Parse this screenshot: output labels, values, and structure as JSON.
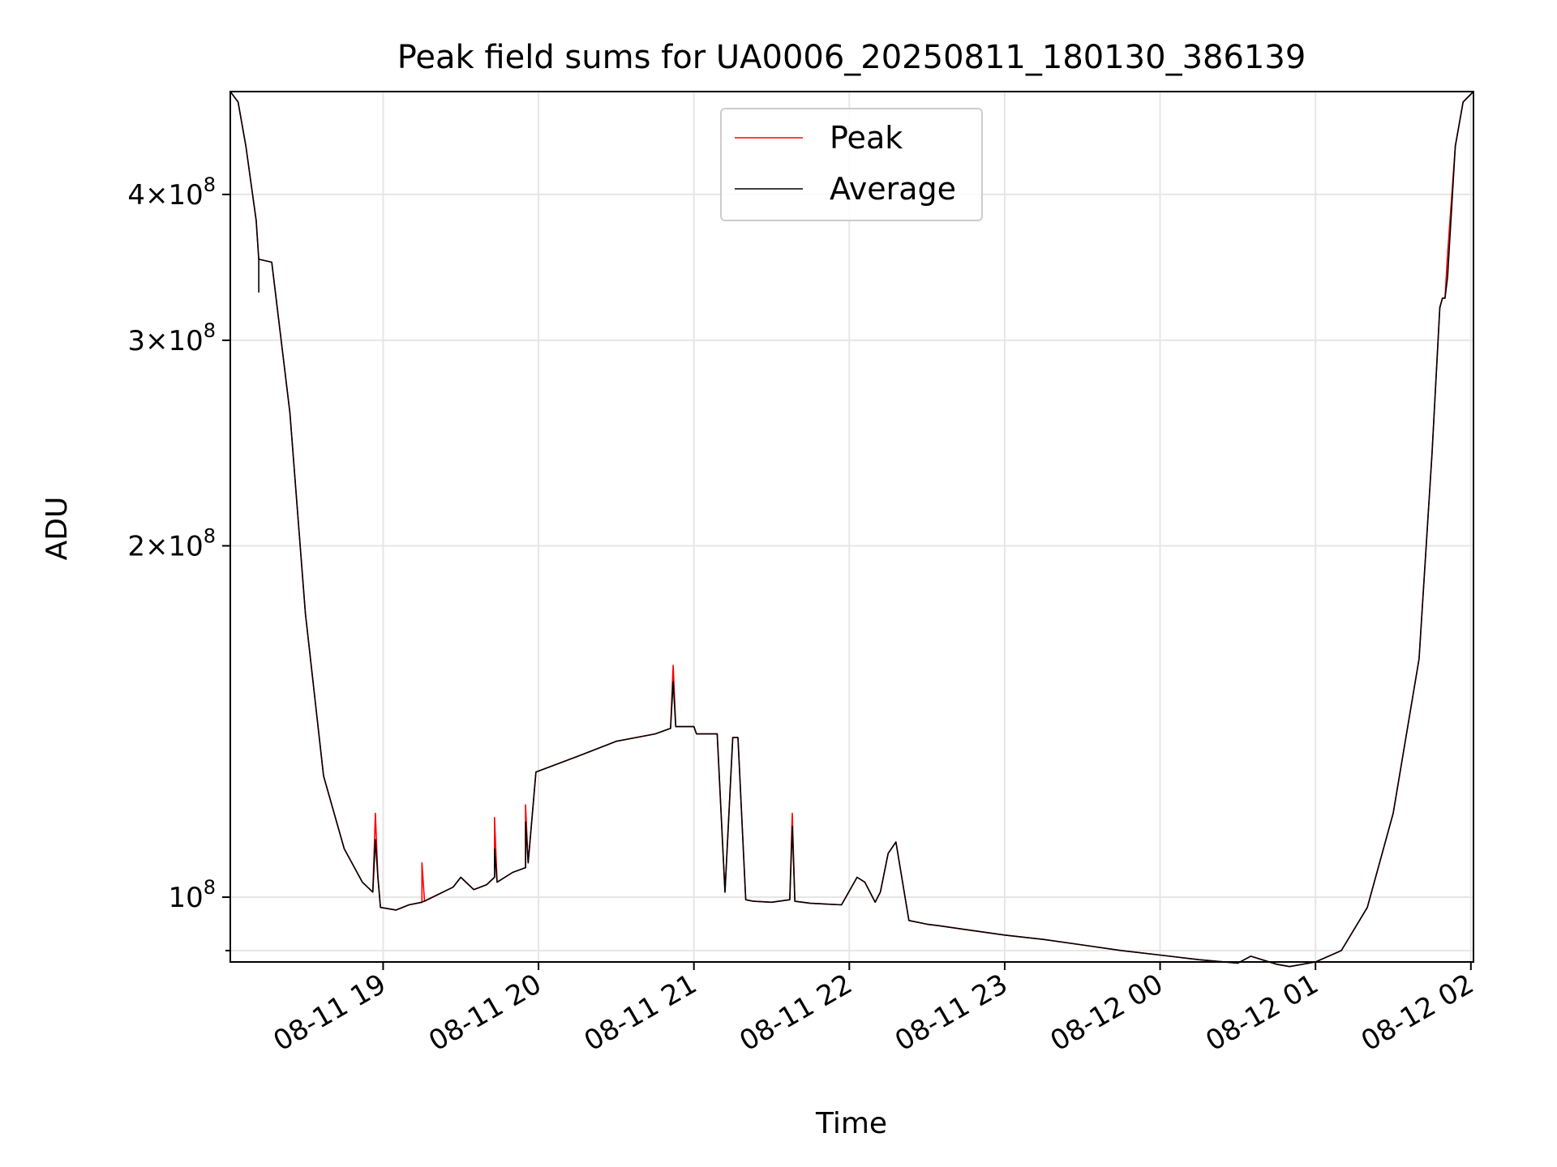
{
  "chart_data": {
    "type": "line",
    "title": "Peak field sums for UA0006_20250811_180130_386139",
    "xlabel": "Time",
    "ylabel": "ADU",
    "yscale": "log",
    "grid": true,
    "legend_position": "upper center",
    "xlim": [
      "2025-08-11 18:01",
      "2025-08-12 02:01"
    ],
    "ylim": [
      88000000,
      490000000
    ],
    "x_ticks": [
      {
        "value": "2025-08-11 19:00",
        "label": "08-11 19"
      },
      {
        "value": "2025-08-11 20:00",
        "label": "08-11 20"
      },
      {
        "value": "2025-08-11 21:00",
        "label": "08-11 21"
      },
      {
        "value": "2025-08-11 22:00",
        "label": "08-11 22"
      },
      {
        "value": "2025-08-11 23:00",
        "label": "08-11 23"
      },
      {
        "value": "2025-08-12 00:00",
        "label": "08-12 00"
      },
      {
        "value": "2025-08-12 01:00",
        "label": "08-12 01"
      },
      {
        "value": "2025-08-12 02:00",
        "label": "08-12 02"
      }
    ],
    "y_ticks_major": [
      {
        "value": 100000000,
        "mant": "",
        "exp": "8"
      },
      {
        "value": 200000000,
        "mant": "2",
        "exp": "8"
      },
      {
        "value": 300000000,
        "mant": "3",
        "exp": "8"
      },
      {
        "value": 400000000,
        "mant": "4",
        "exp": "8"
      }
    ],
    "y_ticks_minor": [
      90000000
    ],
    "series": [
      {
        "name": "Peak",
        "color": "#ff0000",
        "x": [
          "2025-08-11 18:01",
          "2025-08-11 18:04",
          "2025-08-11 18:07",
          "2025-08-11 18:11",
          "2025-08-11 18:12",
          "2025-08-11 18:17",
          "2025-08-11 18:24",
          "2025-08-11 18:30",
          "2025-08-11 18:37",
          "2025-08-11 18:45",
          "2025-08-11 18:52",
          "2025-08-11 18:56",
          "2025-08-11 18:57",
          "2025-08-11 18:58",
          "2025-08-11 18:59",
          "2025-08-11 19:05",
          "2025-08-11 19:10",
          "2025-08-11 19:15",
          "2025-08-11 19:15",
          "2025-08-11 19:16",
          "2025-08-11 19:27",
          "2025-08-11 19:30",
          "2025-08-11 19:35",
          "2025-08-11 19:40",
          "2025-08-11 19:43",
          "2025-08-11 19:43",
          "2025-08-11 19:44",
          "2025-08-11 19:50",
          "2025-08-11 19:55",
          "2025-08-11 19:55",
          "2025-08-11 19:56",
          "2025-08-11 19:59",
          "2025-08-11 20:15",
          "2025-08-11 20:30",
          "2025-08-11 20:45",
          "2025-08-11 20:51",
          "2025-08-11 20:52",
          "2025-08-11 20:53",
          "2025-08-11 21:00",
          "2025-08-11 21:01",
          "2025-08-11 21:09",
          "2025-08-11 21:12",
          "2025-08-11 21:15",
          "2025-08-11 21:17",
          "2025-08-11 21:20",
          "2025-08-11 21:23",
          "2025-08-11 21:30",
          "2025-08-11 21:37",
          "2025-08-11 21:38",
          "2025-08-11 21:39",
          "2025-08-11 21:45",
          "2025-08-11 21:57",
          "2025-08-11 22:03",
          "2025-08-11 22:06",
          "2025-08-11 22:10",
          "2025-08-11 22:12",
          "2025-08-11 22:15",
          "2025-08-11 22:18",
          "2025-08-11 22:23",
          "2025-08-11 22:30",
          "2025-08-11 22:35",
          "2025-08-11 22:45",
          "2025-08-11 23:00",
          "2025-08-11 23:15",
          "2025-08-11 23:30",
          "2025-08-11 23:45",
          "2025-08-12 00:00",
          "2025-08-12 00:15",
          "2025-08-12 00:30",
          "2025-08-12 00:35",
          "2025-08-12 00:45",
          "2025-08-12 00:50",
          "2025-08-12 01:00",
          "2025-08-12 01:10",
          "2025-08-12 01:20",
          "2025-08-12 01:30",
          "2025-08-12 01:40",
          "2025-08-12 01:45",
          "2025-08-12 01:48",
          "2025-08-12 01:49",
          "2025-08-12 01:50",
          "2025-08-12 01:51",
          "2025-08-12 01:54",
          "2025-08-12 01:57",
          "2025-08-12 02:01"
        ],
        "y": [
          490000000,
          480000000,
          440000000,
          380000000,
          352000000,
          350000000,
          260000000,
          175000000,
          127000000,
          110000000,
          103000000,
          101000000,
          118000000,
          104000000,
          98000000,
          97500000,
          98500000,
          99000000,
          107000000,
          99200000,
          102000000,
          104000000,
          101500000,
          102500000,
          104000000,
          117000000,
          103000000,
          105000000,
          106000000,
          120000000,
          107000000,
          128000000,
          132000000,
          136000000,
          138000000,
          139500000,
          158000000,
          140000000,
          140000000,
          138000000,
          138000000,
          101000000,
          137000000,
          137000000,
          99500000,
          99200000,
          99000000,
          99500000,
          118000000,
          99200000,
          98800000,
          98500000,
          104000000,
          103000000,
          99000000,
          101000000,
          109000000,
          111500000,
          95500000,
          94800000,
          94500000,
          93800000,
          92800000,
          92000000,
          91000000,
          90000000,
          89200000,
          88400000,
          87800000,
          89000000,
          87600000,
          87200000,
          88000000,
          90000000,
          98000000,
          118000000,
          160000000,
          240000000,
          320000000,
          326000000,
          326000000,
          356000000,
          440000000,
          480000000,
          490000000
        ]
      },
      {
        "name": "Average",
        "color": "#000000",
        "x": [
          "2025-08-11 18:01",
          "2025-08-11 18:04",
          "2025-08-11 18:07",
          "2025-08-11 18:11",
          "2025-08-11 18:12",
          "2025-08-11 18:12",
          "2025-08-11 18:12",
          "2025-08-11 18:17",
          "2025-08-11 18:24",
          "2025-08-11 18:30",
          "2025-08-11 18:37",
          "2025-08-11 18:45",
          "2025-08-11 18:52",
          "2025-08-11 18:56",
          "2025-08-11 18:57",
          "2025-08-11 18:58",
          "2025-08-11 18:59",
          "2025-08-11 19:05",
          "2025-08-11 19:10",
          "2025-08-11 19:15",
          "2025-08-11 19:27",
          "2025-08-11 19:30",
          "2025-08-11 19:35",
          "2025-08-11 19:40",
          "2025-08-11 19:43",
          "2025-08-11 19:43",
          "2025-08-11 19:44",
          "2025-08-11 19:50",
          "2025-08-11 19:55",
          "2025-08-11 19:55",
          "2025-08-11 19:56",
          "2025-08-11 19:59",
          "2025-08-11 20:15",
          "2025-08-11 20:30",
          "2025-08-11 20:45",
          "2025-08-11 20:51",
          "2025-08-11 20:52",
          "2025-08-11 20:53",
          "2025-08-11 21:00",
          "2025-08-11 21:01",
          "2025-08-11 21:09",
          "2025-08-11 21:12",
          "2025-08-11 21:15",
          "2025-08-11 21:17",
          "2025-08-11 21:20",
          "2025-08-11 21:23",
          "2025-08-11 21:30",
          "2025-08-11 21:37",
          "2025-08-11 21:38",
          "2025-08-11 21:39",
          "2025-08-11 21:45",
          "2025-08-11 21:57",
          "2025-08-11 22:03",
          "2025-08-11 22:06",
          "2025-08-11 22:10",
          "2025-08-11 22:12",
          "2025-08-11 22:15",
          "2025-08-11 22:18",
          "2025-08-11 22:23",
          "2025-08-11 22:30",
          "2025-08-11 22:35",
          "2025-08-11 22:45",
          "2025-08-11 23:00",
          "2025-08-11 23:15",
          "2025-08-11 23:30",
          "2025-08-11 23:45",
          "2025-08-12 00:00",
          "2025-08-12 00:15",
          "2025-08-12 00:30",
          "2025-08-12 00:35",
          "2025-08-12 00:45",
          "2025-08-12 00:50",
          "2025-08-12 01:00",
          "2025-08-12 01:10",
          "2025-08-12 01:20",
          "2025-08-12 01:30",
          "2025-08-12 01:40",
          "2025-08-12 01:45",
          "2025-08-12 01:48",
          "2025-08-12 01:49",
          "2025-08-12 01:50",
          "2025-08-12 01:51",
          "2025-08-12 01:54",
          "2025-08-12 01:57",
          "2025-08-12 02:01"
        ],
        "y": [
          490000000,
          480000000,
          440000000,
          380000000,
          352000000,
          330000000,
          352000000,
          350000000,
          260000000,
          175000000,
          127000000,
          110000000,
          103000000,
          101000000,
          112000000,
          104000000,
          98000000,
          97500000,
          98500000,
          99000000,
          102000000,
          104000000,
          101500000,
          102500000,
          104000000,
          110000000,
          103000000,
          105000000,
          106000000,
          116000000,
          107000000,
          128000000,
          132000000,
          136000000,
          138000000,
          139500000,
          153000000,
          140000000,
          140000000,
          138000000,
          138000000,
          101000000,
          137000000,
          137000000,
          99500000,
          99200000,
          99000000,
          99500000,
          115000000,
          99200000,
          98800000,
          98500000,
          104000000,
          103000000,
          99000000,
          101000000,
          109000000,
          111500000,
          95500000,
          94800000,
          94500000,
          93800000,
          92800000,
          92000000,
          91000000,
          90000000,
          89200000,
          88400000,
          87800000,
          89000000,
          87600000,
          87200000,
          88000000,
          90000000,
          98000000,
          118000000,
          160000000,
          240000000,
          320000000,
          326000000,
          326000000,
          340000000,
          440000000,
          480000000,
          490000000
        ]
      }
    ]
  }
}
